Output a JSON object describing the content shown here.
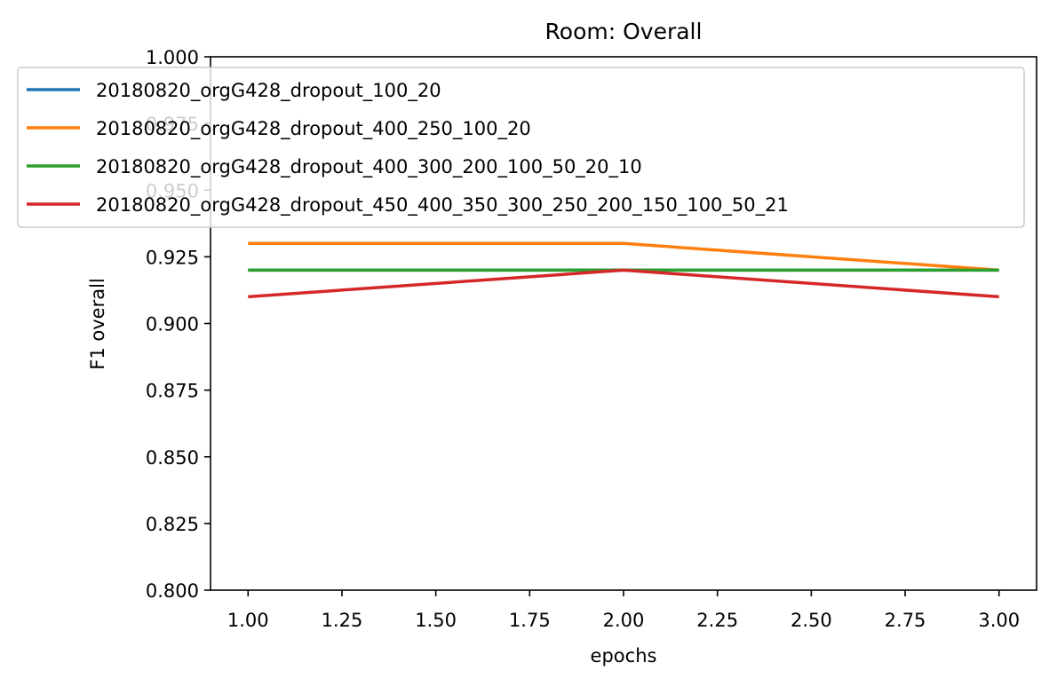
{
  "chart_data": {
    "type": "line",
    "title": "Room: Overall",
    "xlabel": "epochs",
    "ylabel": "F1 overall",
    "xlim": [
      0.9,
      3.1
    ],
    "ylim": [
      0.8,
      1.0
    ],
    "x": [
      1.0,
      2.0,
      3.0
    ],
    "x_ticks": [
      "1.00",
      "1.25",
      "1.50",
      "1.75",
      "2.00",
      "2.25",
      "2.50",
      "2.75",
      "3.00"
    ],
    "y_ticks": [
      "0.800",
      "0.825",
      "0.850",
      "0.875",
      "0.900",
      "0.925",
      "0.950",
      "0.975",
      "1.000"
    ],
    "grid": false,
    "legend_position": "top",
    "series": [
      {
        "name": "20180820_orgG428_dropout_100_20",
        "color": "#1f77b4",
        "values": [
          0.92,
          0.92,
          0.92
        ]
      },
      {
        "name": "20180820_orgG428_dropout_400_250_100_20",
        "color": "#ff7f0e",
        "values": [
          0.93,
          0.93,
          0.92
        ]
      },
      {
        "name": "20180820_orgG428_dropout_400_300_200_100_50_20_10",
        "color": "#2ca02c",
        "values": [
          0.92,
          0.92,
          0.92
        ]
      },
      {
        "name": "20180820_orgG428_dropout_450_400_350_300_250_200_150_100_50_21",
        "color": "#d62728",
        "values": [
          0.91,
          0.92,
          0.91
        ]
      }
    ]
  }
}
